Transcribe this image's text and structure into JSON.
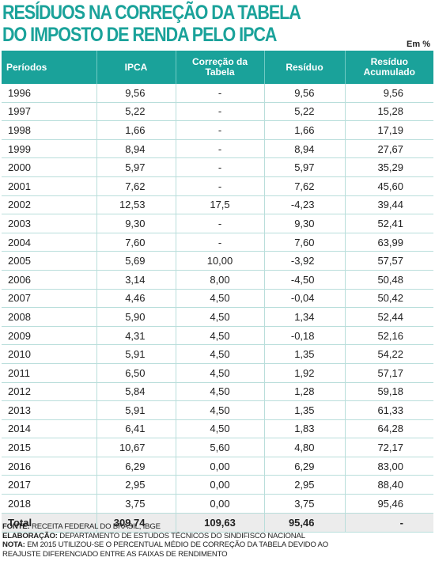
{
  "title": {
    "line1": "RESÍDUOS NA CORREÇÃO DA TABELA",
    "line2": "DO IMPOSTO DE RENDA PELO IPCA"
  },
  "unit": "Em %",
  "table": {
    "headers": [
      "Períodos",
      "IPCA",
      "Correção da Tabela",
      "Resíduo",
      "Resíduo Acumulado"
    ],
    "header_lines": {
      "correcao": [
        "Correção da",
        "Tabela"
      ],
      "acumulado": [
        "Resíduo",
        "Acumulado"
      ]
    },
    "rows": [
      [
        "1996",
        "9,56",
        "-",
        "9,56",
        "9,56"
      ],
      [
        "1997",
        "5,22",
        "-",
        "5,22",
        "15,28"
      ],
      [
        "1998",
        "1,66",
        "-",
        "1,66",
        "17,19"
      ],
      [
        "1999",
        "8,94",
        "-",
        "8,94",
        "27,67"
      ],
      [
        "2000",
        "5,97",
        "-",
        "5,97",
        "35,29"
      ],
      [
        "2001",
        "7,62",
        "-",
        "7,62",
        "45,60"
      ],
      [
        "2002",
        "12,53",
        "17,5",
        "-4,23",
        "39,44"
      ],
      [
        "2003",
        "9,30",
        "-",
        "9,30",
        "52,41"
      ],
      [
        "2004",
        "7,60",
        "-",
        "7,60",
        "63,99"
      ],
      [
        "2005",
        "5,69",
        "10,00",
        "-3,92",
        "57,57"
      ],
      [
        "2006",
        "3,14",
        "8,00",
        "-4,50",
        "50,48"
      ],
      [
        "2007",
        "4,46",
        "4,50",
        "-0,04",
        "50,42"
      ],
      [
        "2008",
        "5,90",
        "4,50",
        "1,34",
        "52,44"
      ],
      [
        "2009",
        "4,31",
        "4,50",
        "-0,18",
        "52,16"
      ],
      [
        "2010",
        "5,91",
        "4,50",
        "1,35",
        "54,22"
      ],
      [
        "2011",
        "6,50",
        "4,50",
        "1,92",
        "57,17"
      ],
      [
        "2012",
        "5,84",
        "4,50",
        "1,28",
        "59,18"
      ],
      [
        "2013",
        "5,91",
        "4,50",
        "1,35",
        "61,33"
      ],
      [
        "2014",
        "6,41",
        "4,50",
        "1,83",
        "64,28"
      ],
      [
        "2015",
        "10,67",
        "5,60",
        "4,80",
        "72,17"
      ],
      [
        "2016",
        "6,29",
        "0,00",
        "6,29",
        "83,00"
      ],
      [
        "2017",
        "2,95",
        "0,00",
        "2,95",
        "88,40"
      ],
      [
        "2018",
        "3,75",
        "0,00",
        "3,75",
        "95,46"
      ]
    ],
    "total": [
      "Total",
      "309,74",
      "109,63",
      "95,46",
      "-"
    ]
  },
  "notes": {
    "fonte_label": "FONTE:",
    "fonte_text": " RECEITA FEDERAL DO BRASIL, IBGE",
    "elaboracao_label": "ELABORAÇÃO:",
    "elaboracao_text": " DEPARTAMENTO DE ESTUDOS TÉCNICOS DO SINDIFISCO NACIONAL",
    "nota_label": "NOTA:",
    "nota_text1": " EM 2015 UTILIZOU-SE O PERCENTUAL MÉDIO DE CORREÇÃO DA TABELA DEVIDO AO",
    "nota_text2": "REAJUSTE DIFERENCIADO ENTRE AS FAIXAS DE RENDIMENTO"
  }
}
